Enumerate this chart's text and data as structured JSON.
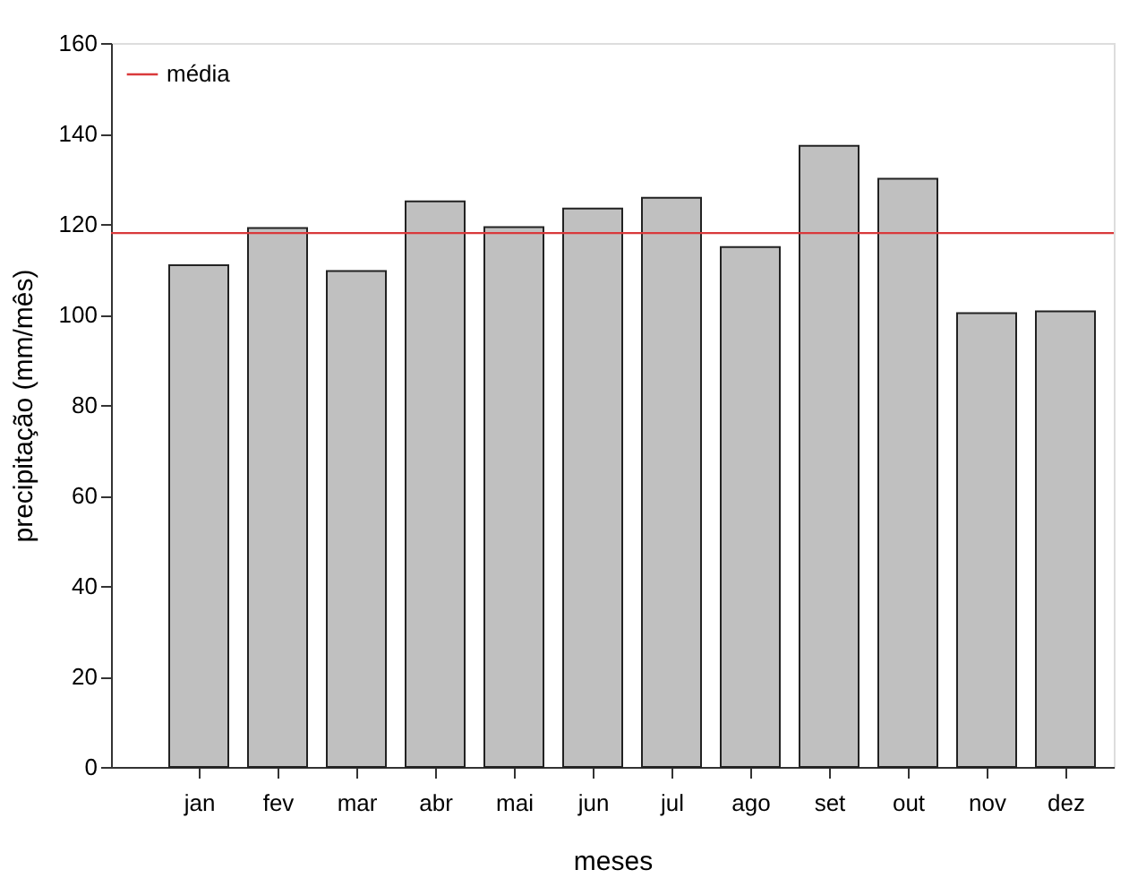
{
  "chart_data": {
    "type": "bar",
    "xlabel": "meses",
    "ylabel": "precipitação (mm/mês)",
    "categories": [
      "jan",
      "fev",
      "mar",
      "abr",
      "mai",
      "jun",
      "jul",
      "ago",
      "set",
      "out",
      "nov",
      "dez"
    ],
    "values": [
      110.9,
      119.1,
      109.6,
      125.0,
      119.3,
      123.4,
      125.8,
      114.9,
      137.3,
      130.0,
      100.3,
      100.7
    ],
    "color": "#c0c0c0",
    "ylim": [
      0,
      160
    ],
    "yticks": [
      0,
      20,
      40,
      60,
      80,
      100,
      120,
      140,
      160
    ],
    "ref_lines": [
      {
        "axis": "y",
        "value": 118.0,
        "label": "média",
        "color": "#d9393b",
        "line_style": "solid"
      }
    ],
    "legend": "top left",
    "grid": false
  }
}
